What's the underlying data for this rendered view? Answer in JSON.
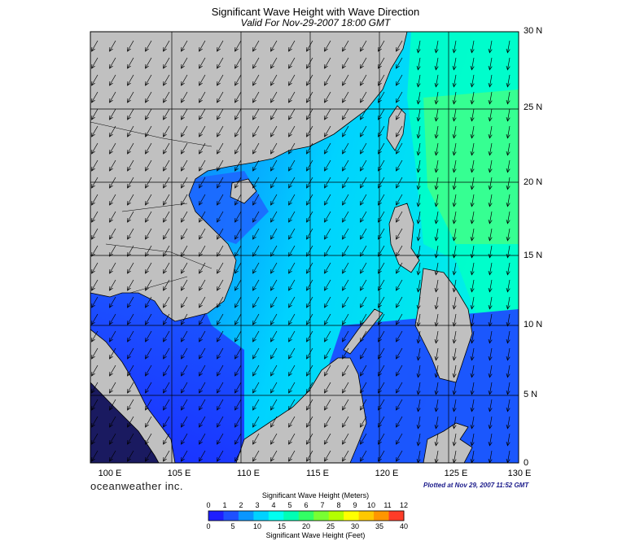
{
  "header": {
    "title": "Significant Wave Height with Wave Direction",
    "subtitle": "Valid For Nov-29-2007 18:00 GMT"
  },
  "axes": {
    "longitude_labels": [
      "100 E",
      "105 E",
      "110 E",
      "115 E",
      "120 E",
      "125 E",
      "130 E"
    ],
    "latitude_labels": [
      "30 N",
      "25 N",
      "20 N",
      "15 N",
      "10 N",
      "5 N",
      "0"
    ]
  },
  "footer": {
    "brand": "oceanweather inc.",
    "plotted": "Plotted at Nov 29, 2007 11:52 GMT"
  },
  "colorbar": {
    "top_title": "Significant Wave Height (Meters)",
    "bottom_title": "Significant Wave Height (Feet)",
    "meters_ticks": [
      "0",
      "1",
      "2",
      "3",
      "4",
      "5",
      "6",
      "7",
      "8",
      "9",
      "10",
      "11",
      "12"
    ],
    "feet_ticks": [
      "0",
      "5",
      "10",
      "15",
      "20",
      "25",
      "30",
      "35",
      "40"
    ],
    "colors": [
      "#1e1eff",
      "#1e50ff",
      "#0a96ff",
      "#00d2ff",
      "#00fff0",
      "#00ffb4",
      "#32ff64",
      "#78ff32",
      "#b4ff00",
      "#ffff00",
      "#ffc800",
      "#ff9600",
      "#ff3c28"
    ]
  },
  "map": {
    "land_color": "#c0c0c0",
    "wave_direction": "from northeast (arrows point southwest)",
    "extent": {
      "lon_min": 100,
      "lon_max": 130,
      "lat_min": 0,
      "lat_max": 30
    }
  }
}
